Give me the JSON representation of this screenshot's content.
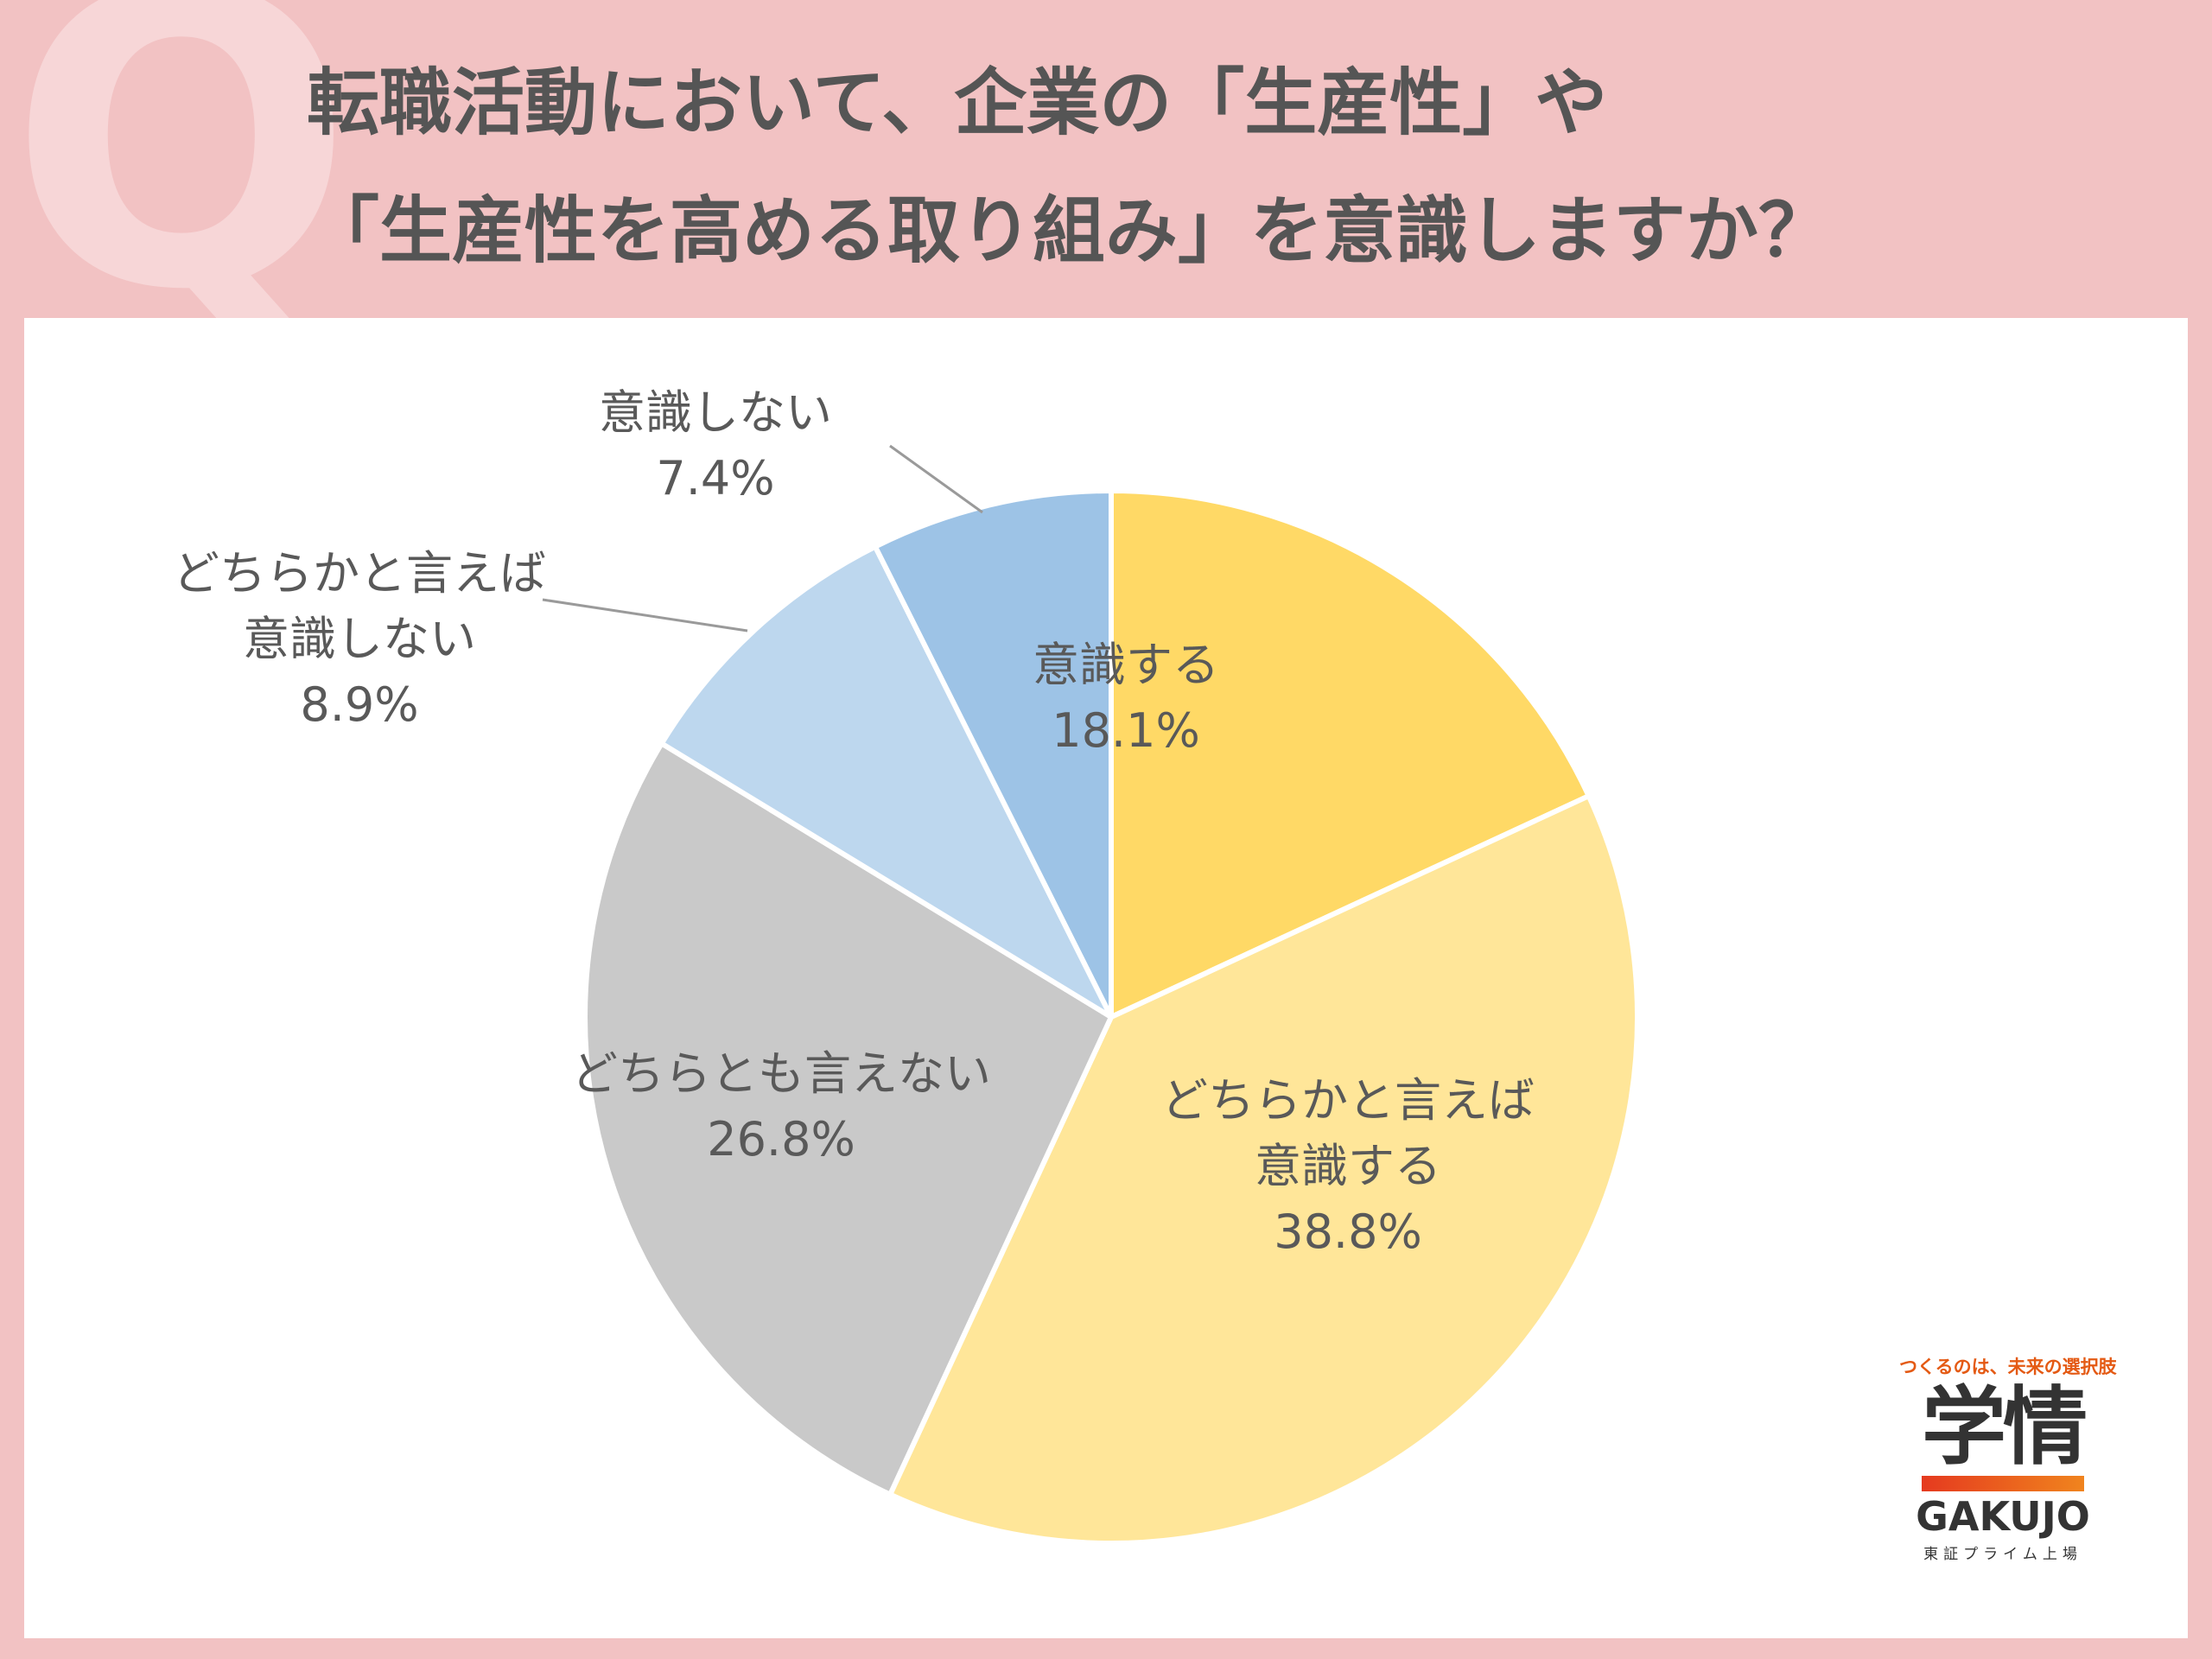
{
  "header": {
    "q_mark": "Q",
    "title_line1": "転職活動において、企業の「生産性」や",
    "title_line2": "「生産性を高める取り組み」を意識しますか？"
  },
  "chart_data": {
    "type": "pie",
    "start_angle_deg": 0,
    "direction": "clockwise",
    "slices": [
      {
        "label_lines": [
          "意識する"
        ],
        "value": 18.1,
        "value_text": "18.1%",
        "color": "#ffd966"
      },
      {
        "label_lines": [
          "どちらかと言えば",
          "意識する"
        ],
        "value": 38.8,
        "value_text": "38.8%",
        "color": "#ffe699"
      },
      {
        "label_lines": [
          "どちらとも言えない"
        ],
        "value": 26.8,
        "value_text": "26.8%",
        "color": "#c9c9c9"
      },
      {
        "label_lines": [
          "どちらかと言えば",
          "意識しない"
        ],
        "value": 8.9,
        "value_text": "8.9%",
        "color": "#bdd7ee"
      },
      {
        "label_lines": [
          "意識しない"
        ],
        "value": 7.4,
        "value_text": "7.4%",
        "color": "#9dc3e6"
      }
    ]
  },
  "logo": {
    "tagline": "つくるのは、未来の選択肢",
    "kanji": "学情",
    "latin": "GAKUJO",
    "sub": "東証プライム上場"
  }
}
